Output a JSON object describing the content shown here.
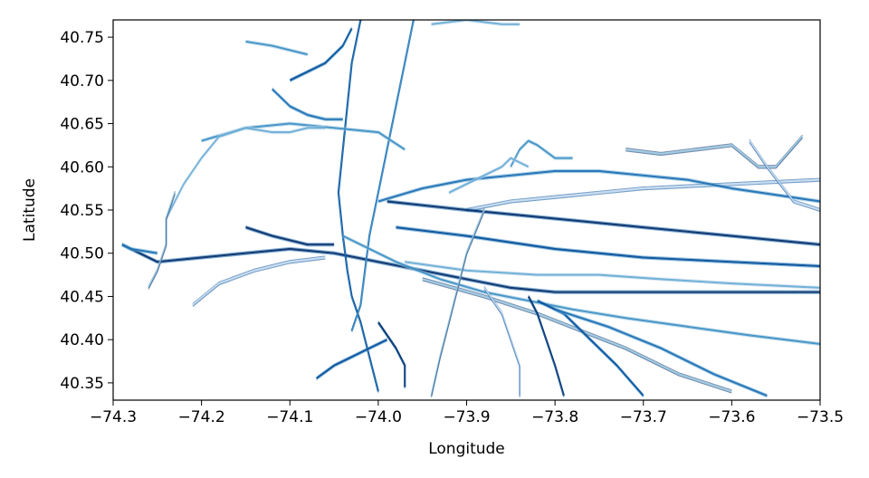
{
  "chart_data": {
    "type": "line",
    "title": "",
    "xlabel": "Longitude",
    "ylabel": "Latitude",
    "xlim": [
      -74.3,
      -73.5
    ],
    "ylim": [
      40.33,
      40.77
    ],
    "xticks": [
      -74.3,
      -74.2,
      -74.1,
      -74.0,
      -73.9,
      -73.8,
      -73.7,
      -73.6,
      -73.5
    ],
    "xtick_labels": [
      "−74.3",
      "−74.2",
      "−74.1",
      "−74.0",
      "−73.9",
      "−73.8",
      "−73.7",
      "−73.6",
      "−73.5"
    ],
    "yticks": [
      40.35,
      40.4,
      40.45,
      40.5,
      40.55,
      40.6,
      40.65,
      40.7,
      40.75
    ],
    "ytick_labels": [
      "40.35",
      "40.40",
      "40.45",
      "40.50",
      "40.55",
      "40.60",
      "40.65",
      "40.70",
      "40.75"
    ],
    "grid": false,
    "legend": "none",
    "colors": [
      "#08306b",
      "#08519c",
      "#2171b5",
      "#4292c6",
      "#6baed6",
      "#9ecae1",
      "#c6dbef"
    ],
    "series": [
      {
        "values": [
          [
            -74.29,
            40.51
          ],
          [
            -74.25,
            40.49
          ],
          [
            -74.2,
            40.495
          ],
          [
            -74.15,
            40.5
          ],
          [
            -74.1,
            40.505
          ],
          [
            -74.05,
            40.5
          ],
          [
            -74.0,
            40.49
          ],
          [
            -73.95,
            40.48
          ],
          [
            -73.9,
            40.47
          ],
          [
            -73.85,
            40.46
          ],
          [
            -73.8,
            40.455
          ],
          [
            -73.7,
            40.455
          ],
          [
            -73.6,
            40.455
          ],
          [
            -73.5,
            40.455
          ]
        ]
      },
      {
        "values": [
          [
            -74.02,
            40.77
          ],
          [
            -74.03,
            40.72
          ],
          [
            -74.035,
            40.67
          ],
          [
            -74.04,
            40.62
          ],
          [
            -74.045,
            40.57
          ],
          [
            -74.04,
            40.52
          ],
          [
            -74.035,
            40.48
          ],
          [
            -74.03,
            40.45
          ],
          [
            -74.02,
            40.42
          ],
          [
            -74.01,
            40.38
          ],
          [
            -74.0,
            40.34
          ]
        ]
      },
      {
        "values": [
          [
            -73.96,
            40.77
          ],
          [
            -73.97,
            40.72
          ],
          [
            -73.98,
            40.67
          ],
          [
            -73.99,
            40.62
          ],
          [
            -74.0,
            40.57
          ],
          [
            -74.01,
            40.52
          ],
          [
            -74.015,
            40.48
          ],
          [
            -74.02,
            40.44
          ],
          [
            -74.03,
            40.41
          ]
        ]
      },
      {
        "values": [
          [
            -74.04,
            40.52
          ],
          [
            -73.98,
            40.49
          ],
          [
            -73.93,
            40.47
          ],
          [
            -73.88,
            40.455
          ],
          [
            -73.83,
            40.445
          ],
          [
            -73.78,
            40.435
          ],
          [
            -73.72,
            40.425
          ],
          [
            -73.65,
            40.415
          ],
          [
            -73.58,
            40.405
          ],
          [
            -73.5,
            40.395
          ]
        ]
      },
      {
        "values": [
          [
            -73.97,
            40.49
          ],
          [
            -73.9,
            40.48
          ],
          [
            -73.82,
            40.475
          ],
          [
            -73.75,
            40.475
          ],
          [
            -73.68,
            40.47
          ],
          [
            -73.6,
            40.465
          ],
          [
            -73.5,
            40.46
          ]
        ]
      },
      {
        "values": [
          [
            -73.95,
            40.47
          ],
          [
            -73.88,
            40.45
          ],
          [
            -73.82,
            40.43
          ],
          [
            -73.77,
            40.41
          ],
          [
            -73.72,
            40.39
          ],
          [
            -73.66,
            40.36
          ],
          [
            -73.6,
            40.34
          ]
        ]
      },
      {
        "values": [
          [
            -73.9,
            40.55
          ],
          [
            -73.85,
            40.56
          ],
          [
            -73.8,
            40.565
          ],
          [
            -73.75,
            40.57
          ],
          [
            -73.7,
            40.575
          ],
          [
            -73.6,
            40.58
          ],
          [
            -73.5,
            40.585
          ]
        ]
      },
      {
        "values": [
          [
            -73.99,
            40.56
          ],
          [
            -73.9,
            40.55
          ],
          [
            -73.8,
            40.54
          ],
          [
            -73.7,
            40.53
          ],
          [
            -73.6,
            40.52
          ],
          [
            -73.5,
            40.51
          ]
        ]
      },
      {
        "values": [
          [
            -73.98,
            40.53
          ],
          [
            -73.9,
            40.52
          ],
          [
            -73.8,
            40.505
          ],
          [
            -73.7,
            40.495
          ],
          [
            -73.6,
            40.49
          ],
          [
            -73.5,
            40.485
          ]
        ]
      },
      {
        "values": [
          [
            -74.0,
            40.56
          ],
          [
            -73.95,
            40.575
          ],
          [
            -73.9,
            40.585
          ],
          [
            -73.85,
            40.59
          ],
          [
            -73.8,
            40.595
          ],
          [
            -73.75,
            40.595
          ],
          [
            -73.7,
            40.59
          ],
          [
            -73.65,
            40.585
          ],
          [
            -73.6,
            40.575
          ],
          [
            -73.5,
            40.56
          ]
        ]
      },
      {
        "values": [
          [
            -74.2,
            40.63
          ],
          [
            -74.15,
            40.645
          ],
          [
            -74.1,
            40.65
          ],
          [
            -74.05,
            40.645
          ],
          [
            -74.0,
            40.64
          ],
          [
            -73.97,
            40.62
          ]
        ]
      },
      {
        "values": [
          [
            -74.24,
            40.54
          ],
          [
            -74.22,
            40.58
          ],
          [
            -74.2,
            40.61
          ],
          [
            -74.18,
            40.635
          ],
          [
            -74.15,
            40.645
          ],
          [
            -74.12,
            40.64
          ],
          [
            -74.1,
            40.64
          ],
          [
            -74.08,
            40.645
          ],
          [
            -74.06,
            40.645
          ]
        ]
      },
      {
        "values": [
          [
            -74.26,
            40.46
          ],
          [
            -74.25,
            40.48
          ],
          [
            -74.24,
            40.51
          ],
          [
            -74.24,
            40.54
          ],
          [
            -74.23,
            40.57
          ]
        ]
      },
      {
        "values": [
          [
            -74.21,
            40.44
          ],
          [
            -74.18,
            40.465
          ],
          [
            -74.14,
            40.48
          ],
          [
            -74.1,
            40.49
          ],
          [
            -74.06,
            40.495
          ]
        ]
      },
      {
        "values": [
          [
            -74.15,
            40.53
          ],
          [
            -74.12,
            40.52
          ],
          [
            -74.08,
            40.51
          ],
          [
            -74.05,
            40.51
          ]
        ]
      },
      {
        "values": [
          [
            -74.1,
            40.7
          ],
          [
            -74.08,
            40.71
          ],
          [
            -74.06,
            40.72
          ],
          [
            -74.04,
            40.74
          ],
          [
            -74.03,
            40.76
          ]
        ]
      },
      {
        "values": [
          [
            -74.12,
            40.69
          ],
          [
            -74.1,
            40.67
          ],
          [
            -74.08,
            40.66
          ],
          [
            -74.06,
            40.655
          ],
          [
            -74.04,
            40.655
          ]
        ]
      },
      {
        "values": [
          [
            -74.15,
            40.745
          ],
          [
            -74.12,
            40.74
          ],
          [
            -74.1,
            40.735
          ],
          [
            -74.08,
            40.73
          ]
        ]
      },
      {
        "values": [
          [
            -73.94,
            40.765
          ],
          [
            -73.9,
            40.77
          ],
          [
            -73.86,
            40.765
          ],
          [
            -73.84,
            40.765
          ]
        ]
      },
      {
        "values": [
          [
            -73.94,
            40.335
          ],
          [
            -73.93,
            40.38
          ],
          [
            -73.92,
            40.42
          ],
          [
            -73.91,
            40.46
          ],
          [
            -73.9,
            40.5
          ],
          [
            -73.88,
            40.55
          ]
        ]
      },
      {
        "values": [
          [
            -73.84,
            40.335
          ],
          [
            -73.84,
            40.37
          ],
          [
            -73.85,
            40.4
          ],
          [
            -73.86,
            40.43
          ],
          [
            -73.88,
            40.46
          ]
        ]
      },
      {
        "values": [
          [
            -73.79,
            40.335
          ],
          [
            -73.8,
            40.37
          ],
          [
            -73.81,
            40.4
          ],
          [
            -73.82,
            40.43
          ],
          [
            -73.83,
            40.45
          ]
        ]
      },
      {
        "values": [
          [
            -73.7,
            40.335
          ],
          [
            -73.73,
            40.37
          ],
          [
            -73.76,
            40.4
          ],
          [
            -73.79,
            40.43
          ],
          [
            -73.82,
            40.445
          ]
        ]
      },
      {
        "values": [
          [
            -73.56,
            40.335
          ],
          [
            -73.62,
            40.36
          ],
          [
            -73.68,
            40.39
          ],
          [
            -73.74,
            40.415
          ],
          [
            -73.8,
            40.435
          ]
        ]
      },
      {
        "values": [
          [
            -73.85,
            40.6
          ],
          [
            -73.84,
            40.62
          ],
          [
            -73.83,
            40.63
          ],
          [
            -73.82,
            40.625
          ],
          [
            -73.8,
            40.61
          ],
          [
            -73.78,
            40.61
          ]
        ]
      },
      {
        "values": [
          [
            -73.92,
            40.57
          ],
          [
            -73.88,
            40.59
          ],
          [
            -73.86,
            40.6
          ],
          [
            -73.85,
            40.61
          ],
          [
            -73.83,
            40.6
          ]
        ]
      },
      {
        "values": [
          [
            -73.72,
            40.62
          ],
          [
            -73.68,
            40.615
          ],
          [
            -73.64,
            40.62
          ],
          [
            -73.6,
            40.625
          ],
          [
            -73.57,
            40.6
          ],
          [
            -73.55,
            40.6
          ],
          [
            -73.52,
            40.635
          ]
        ]
      },
      {
        "values": [
          [
            -73.58,
            40.63
          ],
          [
            -73.56,
            40.6
          ],
          [
            -73.53,
            40.56
          ],
          [
            -73.5,
            40.55
          ]
        ]
      },
      {
        "values": [
          [
            -74.0,
            40.42
          ],
          [
            -73.98,
            40.39
          ],
          [
            -73.97,
            40.37
          ],
          [
            -73.97,
            40.345
          ]
        ]
      },
      {
        "values": [
          [
            -74.07,
            40.355
          ],
          [
            -74.05,
            40.37
          ],
          [
            -74.03,
            40.38
          ],
          [
            -74.01,
            40.39
          ],
          [
            -73.99,
            40.4
          ]
        ]
      },
      {
        "values": [
          [
            -74.25,
            40.5
          ],
          [
            -74.28,
            40.505
          ],
          [
            -74.29,
            40.51
          ]
        ]
      }
    ]
  }
}
